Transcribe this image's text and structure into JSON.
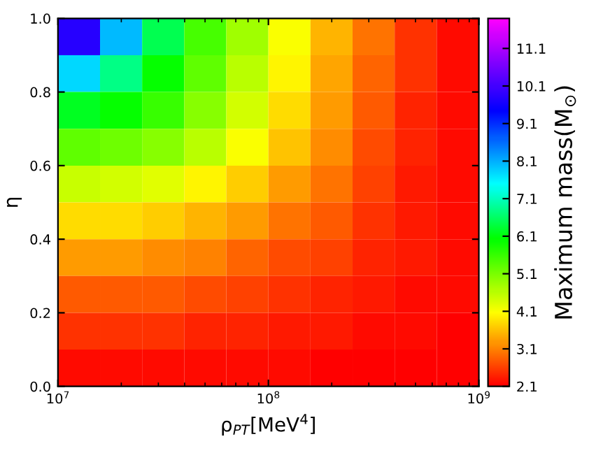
{
  "chart_data": {
    "type": "heatmap",
    "xlabel": "ρ$_{PT}$[MeV$^{4}$]",
    "ylabel": "η",
    "clabel": "Maximum mass(M$_{⊙}$)",
    "log": "x",
    "xlim": [
      10000000,
      1000000000
    ],
    "xticks": [
      {
        "value": 10000000,
        "label": "10$^{7}$"
      },
      {
        "value": 100000000,
        "label": "10$^{8}$"
      },
      {
        "value": 1000000000,
        "label": "10$^{9}$"
      }
    ],
    "ylim": [
      0,
      1
    ],
    "yticks": [
      {
        "value": 0,
        "label": "0.0"
      },
      {
        "value": 0.2,
        "label": "0.2"
      },
      {
        "value": 0.4,
        "label": "0.4"
      },
      {
        "value": 0.6,
        "label": "0.6"
      },
      {
        "value": 0.8,
        "label": "0.8"
      },
      {
        "value": 1,
        "label": "1.0"
      }
    ],
    "clim": [
      2.1,
      11.9
    ],
    "cticks": [
      2.1,
      3.1,
      4.1,
      5.1,
      6.1,
      7.1,
      8.1,
      9.1,
      10.1,
      11.1
    ],
    "cells": [
      [
        9.8,
        8.0,
        6.5,
        5.5,
        4.8,
        4.1,
        3.5,
        3.0,
        2.5,
        2.2
      ],
      [
        7.8,
        6.8,
        6.0,
        5.3,
        4.6,
        4.0,
        3.4,
        2.9,
        2.5,
        2.2
      ],
      [
        6.2,
        6.0,
        5.6,
        5.0,
        4.4,
        3.8,
        3.3,
        2.8,
        2.4,
        2.2
      ],
      [
        5.3,
        5.2,
        5.0,
        4.6,
        4.1,
        3.6,
        3.2,
        2.7,
        2.4,
        2.2
      ],
      [
        4.5,
        4.4,
        4.3,
        4.0,
        3.7,
        3.3,
        3.0,
        2.6,
        2.3,
        2.2
      ],
      [
        3.8,
        3.8,
        3.7,
        3.5,
        3.3,
        3.0,
        2.8,
        2.5,
        2.3,
        2.2
      ],
      [
        3.3,
        3.3,
        3.2,
        3.1,
        2.9,
        2.7,
        2.6,
        2.4,
        2.3,
        2.2
      ],
      [
        2.8,
        2.8,
        2.8,
        2.7,
        2.6,
        2.5,
        2.4,
        2.3,
        2.2,
        2.2
      ],
      [
        2.5,
        2.5,
        2.5,
        2.4,
        2.4,
        2.3,
        2.3,
        2.2,
        2.2,
        2.1
      ],
      [
        2.2,
        2.2,
        2.2,
        2.2,
        2.2,
        2.2,
        2.1,
        2.1,
        2.1,
        2.1
      ]
    ]
  }
}
